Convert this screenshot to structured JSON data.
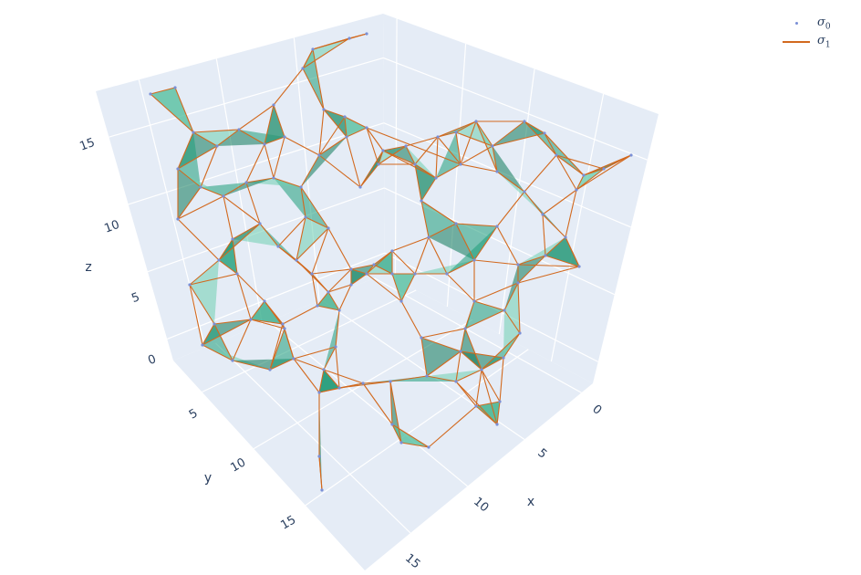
{
  "chart_data": {
    "type": "scatter3d-simplicial-complex",
    "axes": {
      "x": {
        "title": "x",
        "ticks": [
          "0",
          "5",
          "10",
          "15"
        ],
        "range": [
          0,
          17
        ]
      },
      "y": {
        "title": "y",
        "ticks": [
          "5",
          "10",
          "15"
        ],
        "range": [
          0,
          17
        ]
      },
      "z": {
        "title": "z",
        "ticks": [
          "0",
          "5",
          "10",
          "15"
        ],
        "range": [
          0,
          17
        ]
      }
    },
    "grid": true,
    "legend_position": "top-right",
    "series": [
      {
        "name": "σ0",
        "base": "σ",
        "sub": "0",
        "kind": "points",
        "color": "#7a8fd6"
      },
      {
        "name": "σ1",
        "base": "σ",
        "sub": "1",
        "kind": "edges",
        "color": "#d2691e"
      }
    ],
    "mesh_colors": {
      "fill": "#1f9e7a",
      "fill_light": "#6fcfb0",
      "fill_dark": "#0f7a5a"
    },
    "background": "#e5ecf6"
  }
}
